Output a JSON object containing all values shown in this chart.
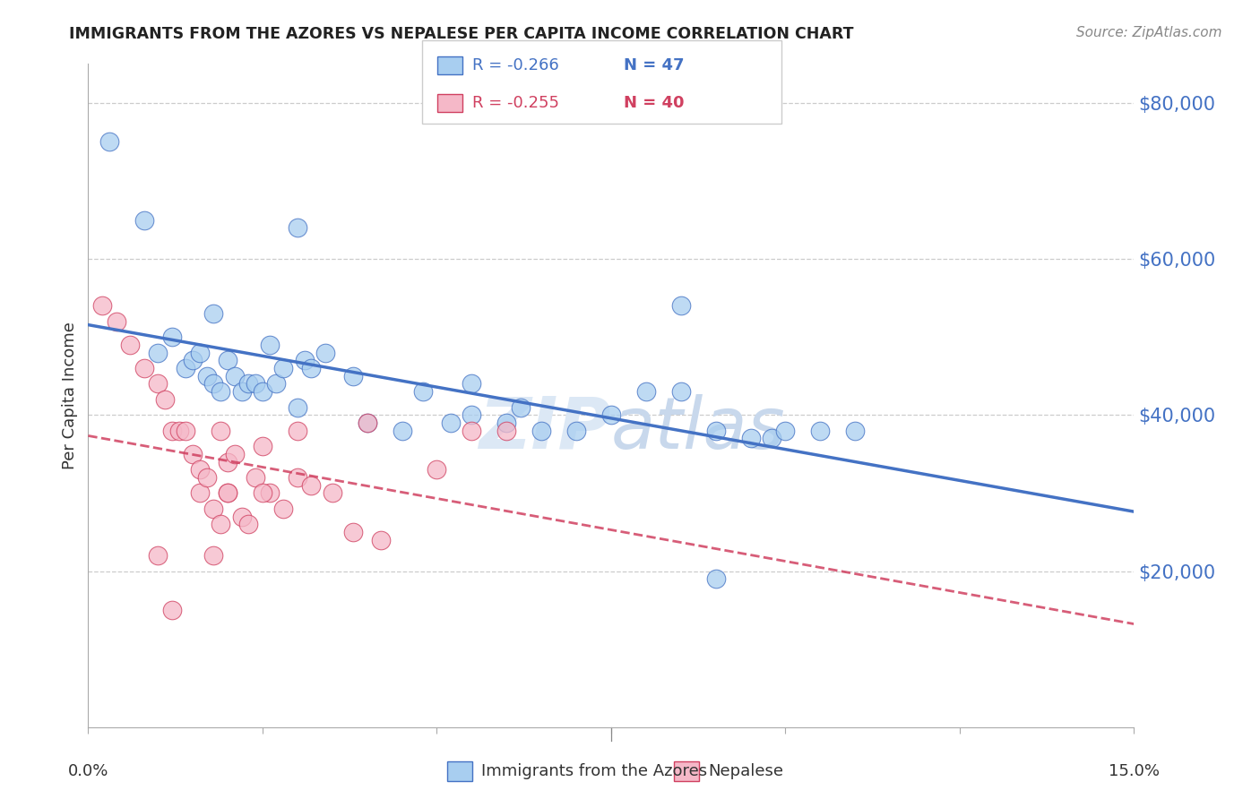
{
  "title": "IMMIGRANTS FROM THE AZORES VS NEPALESE PER CAPITA INCOME CORRELATION CHART",
  "source": "Source: ZipAtlas.com",
  "ylabel": "Per Capita Income",
  "legend_label1": "Immigrants from the Azores",
  "legend_label2": "Nepalese",
  "legend_r1": "R = -0.266",
  "legend_n1": "N = 47",
  "legend_r2": "R = -0.255",
  "legend_n2": "N = 40",
  "watermark_zip": "ZIP",
  "watermark_atlas": "atlas",
  "color_blue": "#A8CEF0",
  "color_pink": "#F5B8C8",
  "line_blue": "#4472C4",
  "line_pink": "#D04060",
  "ytick_color": "#4472C4",
  "background": "#FFFFFF",
  "blue_x": [
    0.003,
    0.008,
    0.01,
    0.012,
    0.014,
    0.015,
    0.016,
    0.017,
    0.018,
    0.019,
    0.02,
    0.021,
    0.022,
    0.023,
    0.024,
    0.025,
    0.026,
    0.027,
    0.028,
    0.03,
    0.031,
    0.032,
    0.034,
    0.038,
    0.04,
    0.045,
    0.048,
    0.052,
    0.055,
    0.06,
    0.062,
    0.065,
    0.07,
    0.075,
    0.08,
    0.085,
    0.09,
    0.095,
    0.098,
    0.1,
    0.105,
    0.11,
    0.085,
    0.03,
    0.055,
    0.018,
    0.09
  ],
  "blue_y": [
    75000,
    65000,
    48000,
    50000,
    46000,
    47000,
    48000,
    45000,
    44000,
    43000,
    47000,
    45000,
    43000,
    44000,
    44000,
    43000,
    49000,
    44000,
    46000,
    41000,
    47000,
    46000,
    48000,
    45000,
    39000,
    38000,
    43000,
    39000,
    44000,
    39000,
    41000,
    38000,
    38000,
    40000,
    43000,
    43000,
    38000,
    37000,
    37000,
    38000,
    38000,
    38000,
    54000,
    64000,
    40000,
    53000,
    19000
  ],
  "pink_x": [
    0.002,
    0.004,
    0.006,
    0.008,
    0.01,
    0.011,
    0.012,
    0.013,
    0.014,
    0.015,
    0.016,
    0.016,
    0.017,
    0.018,
    0.019,
    0.02,
    0.02,
    0.021,
    0.022,
    0.023,
    0.024,
    0.025,
    0.026,
    0.028,
    0.03,
    0.032,
    0.035,
    0.038,
    0.04,
    0.042,
    0.05,
    0.055,
    0.06,
    0.018,
    0.019,
    0.02,
    0.025,
    0.03,
    0.012,
    0.01
  ],
  "pink_y": [
    54000,
    52000,
    49000,
    46000,
    44000,
    42000,
    38000,
    38000,
    38000,
    35000,
    33000,
    30000,
    32000,
    28000,
    26000,
    30000,
    34000,
    35000,
    27000,
    26000,
    32000,
    36000,
    30000,
    28000,
    32000,
    31000,
    30000,
    25000,
    39000,
    24000,
    33000,
    38000,
    38000,
    22000,
    38000,
    30000,
    30000,
    38000,
    15000,
    22000
  ],
  "xlim": [
    0,
    0.15
  ],
  "ylim": [
    0,
    85000
  ],
  "yticks": [
    20000,
    40000,
    60000,
    80000
  ],
  "xtick_positions": [
    0.0,
    0.025,
    0.05,
    0.075,
    0.1,
    0.125,
    0.15
  ]
}
